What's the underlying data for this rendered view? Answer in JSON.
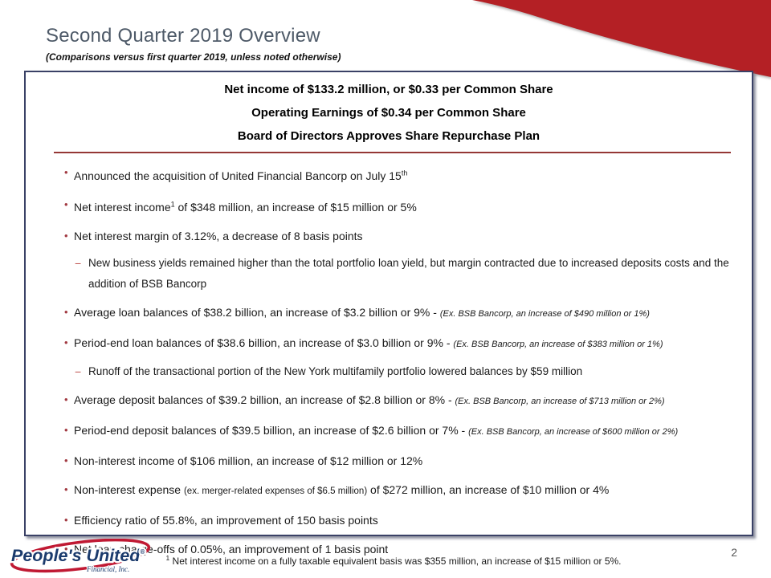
{
  "slide": {
    "title": "Second Quarter 2019 Overview",
    "subtitle": "(Comparisons versus first quarter 2019, unless noted otherwise)",
    "page_number": "2",
    "accent_red": "#b42025",
    "rule_red": "#953735",
    "title_color": "#4e5a68",
    "box_border": "#3a4166"
  },
  "headline": {
    "lines": [
      "Net income of $133.2 million, or $0.33 per Common Share",
      "Operating Earnings of $0.34 per Common Share",
      "Board of Directors Approves Share Repurchase Plan"
    ]
  },
  "bullets": [
    {
      "type": "bullet",
      "segments": [
        {
          "t": "Announced the acquisition of United Financial Bancorp on July 15"
        },
        {
          "t": "th",
          "s": "sup"
        }
      ]
    },
    {
      "type": "bullet",
      "segments": [
        {
          "t": "Net interest income"
        },
        {
          "t": "1",
          "s": "sup"
        },
        {
          "t": " of $348 million, an increase of $15 million or 5%"
        }
      ]
    },
    {
      "type": "bullet",
      "segments": [
        {
          "t": "Net interest margin of 3.12%, a decrease of 8 basis points"
        }
      ]
    },
    {
      "type": "sub",
      "segments": [
        {
          "t": "New business yields remained higher than the total portfolio loan yield, but margin contracted due to increased deposits costs and the addition of BSB Bancorp"
        }
      ]
    },
    {
      "type": "bullet",
      "segments": [
        {
          "t": "Average loan balances of $38.2 billion, an increase of $3.2 billion or 9% - "
        },
        {
          "t": "(Ex. BSB Bancorp, an increase of $490 million or 1%)",
          "s": "note"
        }
      ]
    },
    {
      "type": "bullet",
      "segments": [
        {
          "t": "Period-end loan balances of $38.6 billion, an increase of $3.0 billion or 9% - "
        },
        {
          "t": "(Ex. BSB Bancorp, an increase of $383 million or 1%)",
          "s": "note"
        }
      ]
    },
    {
      "type": "sub",
      "segments": [
        {
          "t": "Runoff of the transactional portion of the New York multifamily portfolio lowered balances by $59 million"
        }
      ]
    },
    {
      "type": "bullet",
      "segments": [
        {
          "t": "Average deposit balances of $39.2 billion, an increase of $2.8 billion or 8% - "
        },
        {
          "t": "(Ex. BSB Bancorp, an increase of $713 million or 2%)",
          "s": "note"
        }
      ]
    },
    {
      "type": "bullet",
      "segments": [
        {
          "t": "Period-end deposit balances of $39.5 billion, an increase of $2.6 billion or 7% - "
        },
        {
          "t": "(Ex. BSB Bancorp, an increase of $600 million or 2%)",
          "s": "note"
        }
      ]
    },
    {
      "type": "bullet",
      "segments": [
        {
          "t": "Non-interest income of $106 million, an increase of $12 million or 12%"
        }
      ]
    },
    {
      "type": "bullet",
      "segments": [
        {
          "t": "Non-interest expense "
        },
        {
          "t": "(ex. merger-related expenses of $6.5 million)",
          "s": "small"
        },
        {
          "t": " of $272 million, an increase of $10 million or 4%"
        }
      ]
    },
    {
      "type": "bullet",
      "segments": [
        {
          "t": "Efficiency ratio of 55.8%, an improvement of 150 basis points"
        }
      ]
    },
    {
      "type": "bullet",
      "segments": [
        {
          "t": "Net loan charge-offs of 0.05%, an improvement of 1 basis point"
        }
      ]
    }
  ],
  "footnote": {
    "sup": "1",
    "text": " Net interest income on a fully taxable equivalent basis was $355 million, an increase of $15 million or 5%."
  },
  "logo": {
    "name": "People's United",
    "reg": "®",
    "sub": "Financial, Inc."
  }
}
